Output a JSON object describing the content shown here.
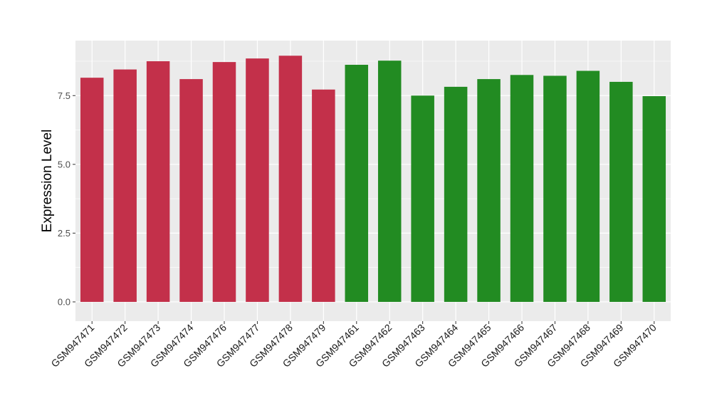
{
  "chart_data": {
    "type": "bar",
    "title": "",
    "xlabel": "",
    "ylabel": "Expression Level",
    "ylim": [
      -0.7,
      9.5
    ],
    "yticks": [
      0.0,
      2.5,
      5.0,
      7.5
    ],
    "ytick_labels": [
      "0.0",
      "2.5",
      "5.0",
      "7.5"
    ],
    "grid": true,
    "legend": "none",
    "categories": [
      "GSM947471",
      "GSM947472",
      "GSM947473",
      "GSM947474",
      "GSM947476",
      "GSM947477",
      "GSM947478",
      "GSM947479",
      "GSM947461",
      "GSM947462",
      "GSM947463",
      "GSM947464",
      "GSM947465",
      "GSM947466",
      "GSM947467",
      "GSM947468",
      "GSM947469",
      "GSM947470"
    ],
    "values": [
      8.15,
      8.45,
      8.75,
      8.1,
      8.72,
      8.85,
      8.95,
      7.72,
      8.62,
      8.77,
      7.5,
      7.82,
      8.1,
      8.25,
      8.22,
      8.4,
      8.0,
      7.48
    ],
    "groups": [
      "1",
      "1",
      "1",
      "1",
      "1",
      "1",
      "1",
      "1",
      "2",
      "2",
      "2",
      "2",
      "2",
      "2",
      "2",
      "2",
      "2",
      "2"
    ],
    "group_colors": {
      "1": "#c3304a",
      "2": "#228b22"
    },
    "panel_background": "#ebebeb",
    "grid_color": "#ffffff"
  }
}
